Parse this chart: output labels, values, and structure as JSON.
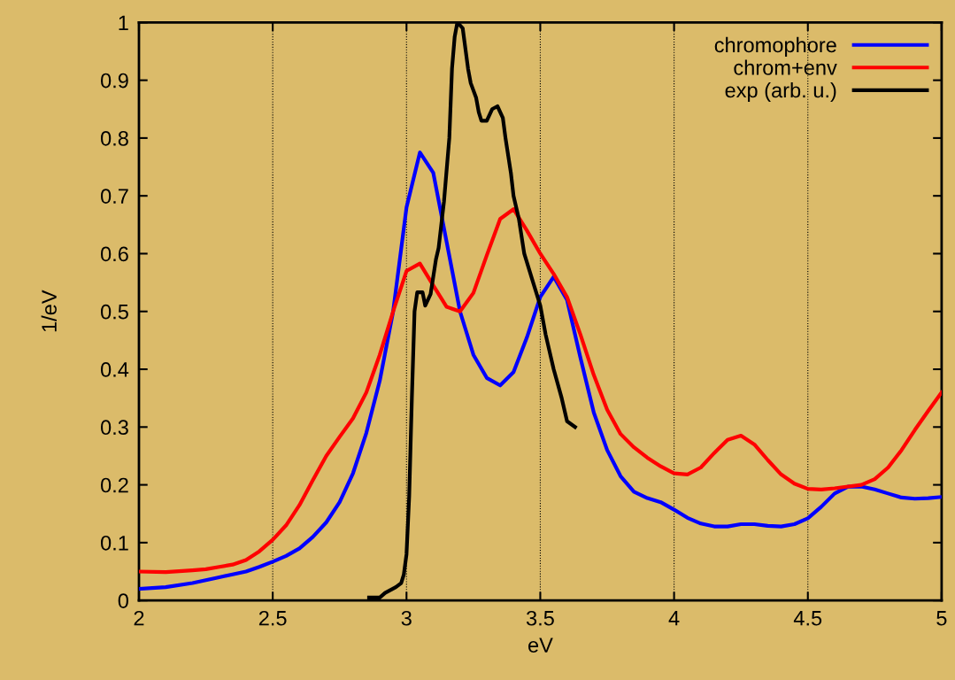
{
  "chart_data": {
    "type": "line",
    "xlabel": "eV",
    "ylabel": "1/eV",
    "xlim": [
      2,
      5
    ],
    "ylim": [
      0,
      1
    ],
    "xticks": [
      2,
      2.5,
      3,
      3.5,
      4,
      4.5,
      5
    ],
    "yticks": [
      0,
      0.1,
      0.2,
      0.3,
      0.4,
      0.5,
      0.6,
      0.7,
      0.8,
      0.9,
      1
    ],
    "grid": "x",
    "legend": "top right",
    "line_style": "solid",
    "marker": "none",
    "series": [
      {
        "name": "chromophore",
        "color": "#0000ff",
        "x": [
          2.0,
          2.1,
          2.2,
          2.3,
          2.4,
          2.45,
          2.5,
          2.55,
          2.6,
          2.65,
          2.7,
          2.75,
          2.8,
          2.85,
          2.9,
          2.95,
          3.0,
          3.05,
          3.1,
          3.15,
          3.2,
          3.25,
          3.3,
          3.35,
          3.4,
          3.45,
          3.5,
          3.55,
          3.6,
          3.65,
          3.7,
          3.75,
          3.8,
          3.85,
          3.9,
          3.95,
          4.0,
          4.05,
          4.1,
          4.15,
          4.2,
          4.25,
          4.3,
          4.35,
          4.4,
          4.45,
          4.5,
          4.55,
          4.6,
          4.65,
          4.7,
          4.75,
          4.8,
          4.85,
          4.9,
          4.95,
          5.0
        ],
        "values": [
          0.02,
          0.023,
          0.03,
          0.04,
          0.05,
          0.058,
          0.067,
          0.077,
          0.09,
          0.11,
          0.135,
          0.17,
          0.22,
          0.29,
          0.38,
          0.5,
          0.68,
          0.775,
          0.74,
          0.62,
          0.5,
          0.425,
          0.385,
          0.372,
          0.395,
          0.455,
          0.525,
          0.56,
          0.52,
          0.42,
          0.325,
          0.26,
          0.215,
          0.188,
          0.177,
          0.17,
          0.157,
          0.143,
          0.133,
          0.128,
          0.128,
          0.132,
          0.132,
          0.129,
          0.128,
          0.132,
          0.142,
          0.162,
          0.185,
          0.197,
          0.197,
          0.192,
          0.185,
          0.178,
          0.176,
          0.177,
          0.179
        ]
      },
      {
        "name": "chrom+env",
        "color": "#ff0000",
        "x": [
          2.0,
          2.1,
          2.2,
          2.25,
          2.3,
          2.35,
          2.4,
          2.45,
          2.5,
          2.55,
          2.6,
          2.65,
          2.7,
          2.75,
          2.8,
          2.85,
          2.9,
          2.95,
          3.0,
          3.05,
          3.1,
          3.15,
          3.2,
          3.25,
          3.3,
          3.35,
          3.4,
          3.45,
          3.5,
          3.55,
          3.6,
          3.65,
          3.7,
          3.75,
          3.8,
          3.85,
          3.9,
          3.95,
          4.0,
          4.05,
          4.1,
          4.15,
          4.2,
          4.25,
          4.3,
          4.35,
          4.4,
          4.45,
          4.5,
          4.55,
          4.6,
          4.65,
          4.7,
          4.75,
          4.8,
          4.85,
          4.9,
          4.95,
          5.0
        ],
        "values": [
          0.05,
          0.049,
          0.052,
          0.054,
          0.058,
          0.062,
          0.07,
          0.085,
          0.105,
          0.13,
          0.165,
          0.208,
          0.25,
          0.283,
          0.315,
          0.36,
          0.425,
          0.5,
          0.57,
          0.583,
          0.545,
          0.508,
          0.5,
          0.532,
          0.597,
          0.66,
          0.677,
          0.64,
          0.6,
          0.565,
          0.525,
          0.46,
          0.39,
          0.33,
          0.288,
          0.265,
          0.247,
          0.232,
          0.22,
          0.218,
          0.23,
          0.255,
          0.278,
          0.285,
          0.27,
          0.243,
          0.218,
          0.202,
          0.193,
          0.192,
          0.194,
          0.197,
          0.2,
          0.21,
          0.23,
          0.26,
          0.295,
          0.328,
          0.36
        ]
      },
      {
        "name": "exp (arb. u.)",
        "color": "#000000",
        "x": [
          2.86,
          2.9,
          2.92,
          2.96,
          2.98,
          2.99,
          3.0,
          3.01,
          3.02,
          3.03,
          3.04,
          3.06,
          3.07,
          3.09,
          3.11,
          3.12,
          3.14,
          3.16,
          3.17,
          3.18,
          3.19,
          3.21,
          3.23,
          3.24,
          3.26,
          3.27,
          3.28,
          3.3,
          3.32,
          3.34,
          3.36,
          3.37,
          3.39,
          3.4,
          3.42,
          3.44,
          3.47,
          3.5,
          3.52,
          3.55,
          3.58,
          3.6,
          3.63
        ],
        "values": [
          0.005,
          0.005,
          0.013,
          0.023,
          0.03,
          0.045,
          0.08,
          0.18,
          0.35,
          0.5,
          0.533,
          0.533,
          0.51,
          0.53,
          0.59,
          0.61,
          0.69,
          0.8,
          0.92,
          0.975,
          1.0,
          0.99,
          0.92,
          0.895,
          0.87,
          0.845,
          0.83,
          0.83,
          0.85,
          0.855,
          0.835,
          0.8,
          0.74,
          0.7,
          0.66,
          0.6,
          0.555,
          0.51,
          0.46,
          0.4,
          0.35,
          0.31,
          0.3
        ]
      }
    ]
  }
}
